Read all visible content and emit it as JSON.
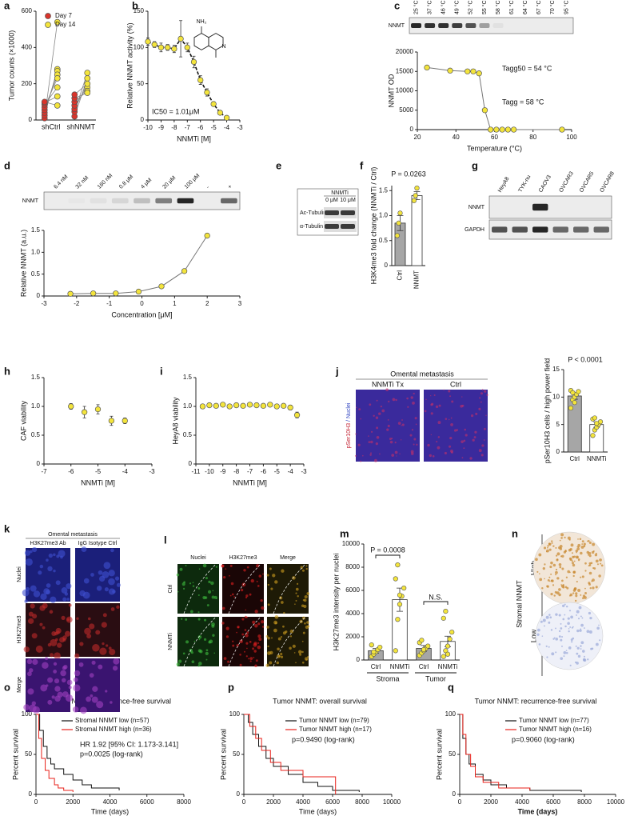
{
  "panel_letters": [
    "a",
    "b",
    "c",
    "d",
    "e",
    "f",
    "g",
    "h",
    "i",
    "j",
    "k",
    "l",
    "m",
    "n",
    "o",
    "p",
    "q"
  ],
  "chart_data": [
    {
      "type": "paired",
      "ylabel": "Tumor counts (×1000)",
      "categories": [
        "shCtrl",
        "shNNMT"
      ],
      "series": [
        {
          "name": "Day 7",
          "color": "#d9342b",
          "values": [
            [
              10,
              25,
              40,
              55,
              70,
              85,
              95,
              100
            ],
            [
              20,
              45,
              60,
              80,
              100,
              120,
              140
            ]
          ]
        },
        {
          "name": "Day 14",
          "color": "#f3e43c",
          "values": [
            [
              540,
              280,
              270,
              250,
              230,
              180,
              130,
              80
            ],
            [
              230,
              260,
              200,
              180,
              160,
              150,
              200
            ]
          ]
        }
      ],
      "ylim": [
        0,
        600
      ],
      "yticks": [
        0,
        200,
        400,
        600
      ]
    },
    {
      "type": "scatter",
      "xlabel": "NNMTi [M]",
      "ylabel": "Relative NNMT activity (%)",
      "annotations": [
        "IC50 = 1.01μM"
      ],
      "structure": [
        "NH₂",
        "N"
      ],
      "x": [
        -10,
        -9.5,
        -9,
        -8.5,
        -8,
        -7.5,
        -7,
        -6.5,
        -6,
        -5.5,
        -5,
        -4.5,
        -4
      ],
      "series": [
        {
          "color": "#f3e43c",
          "values": [
            108,
            104,
            100,
            100,
            98,
            112,
            100,
            80,
            55,
            38,
            22,
            10,
            3
          ],
          "errors": [
            5,
            4,
            6,
            4,
            5,
            25,
            6,
            8,
            6,
            5,
            3,
            2,
            1
          ]
        }
      ],
      "fit": "dashed",
      "xlim": [
        -10,
        -3
      ],
      "xticks": [
        -10,
        -9,
        -8,
        -7,
        -6,
        -5,
        -4,
        -3
      ],
      "ylim": [
        0,
        150
      ],
      "yticks": [
        0,
        50,
        100,
        150
      ]
    },
    {
      "type": "scatter",
      "xlabel": "Temperature (°C)",
      "ylabel": "NNMT OD",
      "annotations": [
        "Tagg50 = 54 °C",
        "Tagg = 58 °C"
      ],
      "x": [
        25,
        37,
        46,
        49,
        52,
        55,
        58,
        61,
        64,
        67,
        70,
        95
      ],
      "series": [
        {
          "color": "#f3e43c",
          "values": [
            16000,
            15200,
            15000,
            15000,
            14500,
            5000,
            0,
            0,
            0,
            0,
            0,
            0
          ]
        }
      ],
      "fit": "solid",
      "xlim": [
        20,
        100
      ],
      "xticks": [
        20,
        40,
        60,
        80,
        100
      ],
      "ylim": [
        0,
        20000
      ],
      "yticks": [
        0,
        5000,
        10000,
        15000,
        20000
      ]
    },
    {
      "type": "scatter",
      "xlabel": "Concentration [μM]",
      "ylabel": "Relative NNMT (a.u.)",
      "x": [
        -2.19,
        -1.49,
        -0.8,
        -0.1,
        0.6,
        1.3,
        2
      ],
      "series": [
        {
          "color": "#f3e43c",
          "values": [
            0.05,
            0.06,
            0.06,
            0.1,
            0.22,
            0.57,
            1.38
          ]
        }
      ],
      "fit": "solid",
      "xlim": [
        -3,
        3
      ],
      "xticks": [
        -3,
        -2,
        -1,
        0,
        1,
        2,
        3
      ],
      "ylim": [
        0,
        1.5
      ],
      "yticks": [
        0,
        0.5,
        {
          "value": 1,
          "label": "1.0"
        },
        1.5
      ]
    },
    {
      "type": "bar",
      "ylabel": "H3K4me3 fold change (NNMTi / Ctrl)",
      "categories": [
        "Ctrl",
        "NNMT"
      ],
      "values": [
        0.85,
        1.4
      ],
      "errors": [
        0.15,
        0.08
      ],
      "points": [
        [
          0.6,
          0.85,
          1.05
        ],
        [
          1.3,
          1.4,
          1.55
        ]
      ],
      "colors": [
        "#a6a6a6",
        "#ffffff"
      ],
      "point_color": "#f3e43c",
      "annotations": [
        "P = 0.0263"
      ],
      "ylim": [
        0,
        1.6
      ],
      "yticks": [
        0,
        0.5,
        {
          "value": 1,
          "label": "1.0"
        },
        1.5
      ]
    },
    {
      "type": "scatter",
      "xlabel": "NNMTi [M]",
      "ylabel": "CAF viability",
      "x": [
        -6,
        -5.5,
        -5,
        -4.5,
        -4
      ],
      "series": [
        {
          "color": "#f3e43c",
          "values": [
            1.0,
            0.9,
            0.95,
            0.75,
            0.75
          ],
          "errors": [
            0.05,
            0.1,
            0.08,
            0.08,
            0.05
          ]
        }
      ],
      "xlim": [
        -7,
        -3
      ],
      "xticks": [
        -7,
        -6,
        -5,
        -4,
        -3
      ],
      "ylim": [
        0,
        1.5
      ],
      "yticks": [
        0,
        0.5,
        {
          "value": 1,
          "label": "1.0"
        },
        1.5
      ]
    },
    {
      "type": "scatter",
      "xlabel": "NNMTi [M]",
      "ylabel": "HeyA8 viability",
      "x": [
        -10.5,
        -10,
        -9.5,
        -9,
        -8.5,
        -8,
        -7.5,
        -7,
        -6.5,
        -6,
        -5.5,
        -5,
        -4.5,
        -4,
        -3.5
      ],
      "series": [
        {
          "color": "#f3e43c",
          "values": [
            1.0,
            1.02,
            1.01,
            1.03,
            1.0,
            1.02,
            1.01,
            1.03,
            1.02,
            1.01,
            1.03,
            1.0,
            1.01,
            0.98,
            0.85
          ],
          "errors": [
            0.03,
            0.03,
            0.03,
            0.03,
            0.03,
            0.03,
            0.03,
            0.03,
            0.03,
            0.03,
            0.03,
            0.03,
            0.03,
            0.04,
            0.05
          ]
        }
      ],
      "xlim": [
        -11,
        -3
      ],
      "xticks": [
        -11,
        -10,
        -9,
        -8,
        -7,
        -6,
        -5,
        -4,
        -3
      ],
      "ylim": [
        0,
        1.5
      ],
      "yticks": [
        0,
        0.5,
        {
          "value": 1,
          "label": "1.0"
        },
        1.5
      ]
    },
    {
      "type": "bar",
      "ylabel": "pSer10H3 cells / high power field",
      "categories": [
        "Ctrl",
        "NNMTi"
      ],
      "values": [
        10.2,
        5.0
      ],
      "errors": [
        0.6,
        0.5
      ],
      "points": [
        [
          8,
          9.5,
          10,
          10.5,
          11,
          11.2,
          10.8,
          9
        ],
        [
          3,
          4,
          4.5,
          5,
          5.5,
          6,
          6.2,
          5.2
        ]
      ],
      "colors": [
        "#a6a6a6",
        "#ffffff"
      ],
      "point_color": "#f3e43c",
      "annotations": [
        "P < 0.0001"
      ],
      "ylim": [
        0,
        15
      ],
      "yticks": [
        0,
        5,
        10,
        15
      ]
    },
    {
      "type": "bar",
      "ylabel": "H3K27me3 intensity per nuclei",
      "categories": [
        "Ctrl",
        "NNMTi",
        "Ctrl",
        "NNMTi"
      ],
      "groups": [
        "Stroma",
        "Tumor"
      ],
      "values": [
        800,
        5200,
        1000,
        1600
      ],
      "errors": [
        200,
        1000,
        250,
        450
      ],
      "points": [
        [
          300,
          500,
          700,
          900,
          1100,
          1300,
          700
        ],
        [
          800,
          3500,
          4800,
          5500,
          6200,
          7000,
          8200,
          5600
        ],
        [
          400,
          600,
          800,
          1000,
          1200,
          1500,
          1700,
          900
        ],
        [
          300,
          800,
          1200,
          1800,
          2400,
          3600,
          4200,
          500
        ]
      ],
      "colors": [
        "#a6a6a6",
        "#ffffff",
        "#a6a6a6",
        "#ffffff"
      ],
      "point_color": "#f3e43c",
      "annotations": [
        "P = 0.0008",
        "N.S."
      ],
      "ylim": [
        0,
        10000
      ],
      "yticks": [
        0,
        2000,
        4000,
        6000,
        8000,
        10000
      ]
    },
    {
      "type": "survival",
      "title": "Stromal  NNMT: recurrence-free survival",
      "xlabel": "Time (days)",
      "ylabel": "Percent survival",
      "series": [
        {
          "name": "Stromal NNMT low (n=57)",
          "color": "#111111",
          "x": [
            0,
            200,
            400,
            600,
            800,
            1000,
            1500,
            2000,
            2500,
            3000,
            4500
          ],
          "values": [
            100,
            80,
            60,
            45,
            38,
            32,
            25,
            18,
            12,
            8,
            5
          ]
        },
        {
          "name": "Stromal NNMT high (n=36)",
          "color": "#e8221b",
          "x": [
            0,
            150,
            300,
            500,
            700,
            1000,
            1200,
            1500,
            2000
          ],
          "values": [
            100,
            70,
            45,
            30,
            20,
            12,
            8,
            5,
            3
          ]
        }
      ],
      "annotations": [
        "HR 1.92 [95% CI: 1.173-3.141]",
        "p=0.0025 (log-rank)"
      ],
      "xlim": [
        0,
        8000
      ],
      "xticks": [
        0,
        2000,
        4000,
        6000,
        8000
      ],
      "ylim": [
        0,
        100
      ],
      "yticks": [
        0,
        50,
        100
      ]
    },
    {
      "type": "survival",
      "title": "Tumor NNMT: overall survival",
      "xlabel": "Time (days)",
      "ylabel": "Percent survival",
      "series": [
        {
          "name": "Tumor NNMT low (n=79)",
          "color": "#111111",
          "x": [
            0,
            300,
            600,
            1000,
            1500,
            2000,
            3000,
            4000,
            5000,
            6000,
            7800
          ],
          "values": [
            100,
            90,
            75,
            60,
            45,
            35,
            25,
            15,
            10,
            5,
            3
          ]
        },
        {
          "name": "Tumor NNMT high (n=17)",
          "color": "#e8221b",
          "x": [
            0,
            400,
            800,
            1200,
            1800,
            2500,
            4000,
            6200
          ],
          "values": [
            100,
            85,
            70,
            55,
            40,
            30,
            22,
            0
          ]
        }
      ],
      "annotations": [
        "p=0.9490 (log-rank)"
      ],
      "xlim": [
        0,
        10000
      ],
      "xticks": [
        0,
        2000,
        4000,
        6000,
        8000,
        10000
      ],
      "ylim": [
        0,
        100
      ],
      "yticks": [
        0,
        50,
        100
      ]
    },
    {
      "type": "survival",
      "title": "Tumor  NNMT: recurrence-free survival",
      "xlabel": "Time (days)",
      "ylabel": "Percent survival",
      "series": [
        {
          "name": "Tumor NNMT low (n=77)",
          "color": "#111111",
          "x": [
            0,
            200,
            400,
            600,
            1000,
            1500,
            2000,
            3000,
            4500,
            7800
          ],
          "values": [
            100,
            70,
            50,
            38,
            25,
            18,
            12,
            8,
            5,
            3
          ]
        },
        {
          "name": "Tumor NNMT high (n=16)",
          "color": "#e8221b",
          "x": [
            0,
            200,
            400,
            700,
            1000,
            1500,
            2500,
            4500
          ],
          "values": [
            100,
            75,
            50,
            35,
            22,
            15,
            8,
            5
          ]
        }
      ],
      "annotations": [
        "p=0.9060 (log-rank)"
      ],
      "xlim": [
        0,
        10000
      ],
      "xticks": [
        0,
        2000,
        4000,
        6000,
        8000,
        10000
      ],
      "ylim": [
        0,
        100
      ],
      "yticks": [
        0,
        50,
        100
      ]
    }
  ],
  "images": {
    "c": {
      "band": "NNMT",
      "lanes": [
        "25 °C",
        "37 °C",
        "46 °C",
        "49 °C",
        "52 °C",
        "55 °C",
        "58 °C",
        "61 °C",
        "64 °C",
        "67 °C",
        "70 °C",
        "95 °C"
      ]
    },
    "d": {
      "band": "NNMT",
      "lanes": [
        "6.4 nM",
        "32 nM",
        "160 nM",
        "0.8 μM",
        "4 μM",
        "20 μM",
        "100 μM",
        "-",
        "+"
      ]
    },
    "e": {
      "treatment": "NNMTi",
      "lanes": [
        "0 μM",
        "10 μM"
      ],
      "bands": [
        "Ac-Tubulin",
        "α-Tubulin"
      ]
    },
    "g": {
      "lanes": [
        "HeyA8",
        "TYK-nu",
        "CAOV3",
        "OVCAR3",
        "OVCAR5",
        "OVCAR8"
      ],
      "bands": [
        "NNMT",
        "GAPDH"
      ]
    },
    "j": {
      "title": "Omental metastasis",
      "columns": [
        "NNMTi Tx",
        "Ctrl"
      ],
      "stain": [
        "pSer10H3",
        " / Nuclei"
      ]
    },
    "k": {
      "title": "Omental metastasis",
      "columns": [
        "H3K27me3 Ab",
        "IgG Isotype Ctrl"
      ],
      "rows": [
        "Nuclei",
        "H3K27me3",
        "Merge"
      ]
    },
    "l": {
      "columns": [
        "Nuclei",
        "H3K27me3",
        "Merge"
      ],
      "rows": [
        "Ctrl",
        "NNMTi"
      ]
    },
    "n": {
      "label": "Stromal NNMT",
      "rows": [
        "High",
        "Low"
      ]
    }
  }
}
